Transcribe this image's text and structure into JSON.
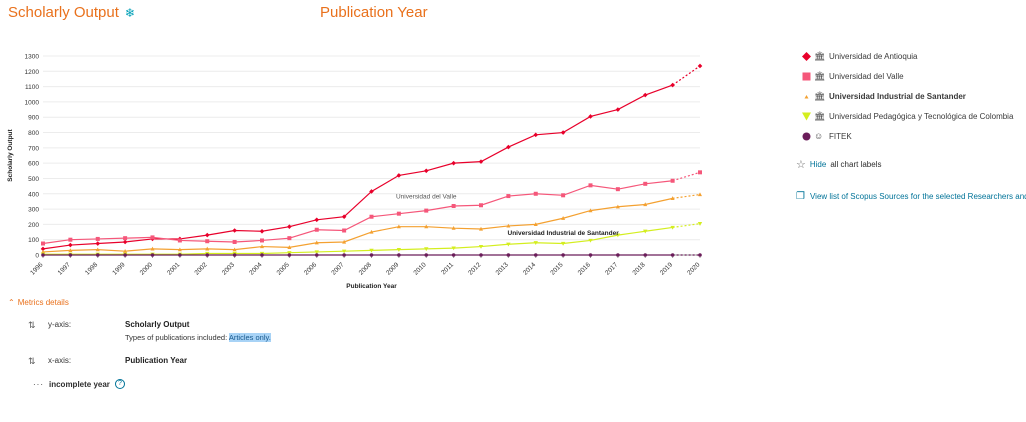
{
  "header": {
    "title": "Scholarly Output",
    "center_title": "Publication Year"
  },
  "legend": [
    {
      "label": "Universidad de Antioquia",
      "color": "#e8002b",
      "shape": "diamond",
      "bold": false
    },
    {
      "label": "Universidad del Valle",
      "color": "#f5577a",
      "shape": "square",
      "bold": false
    },
    {
      "label": "Universidad Industrial de Santander",
      "color": "#f4a131",
      "shape": "triangle-up",
      "bold": true
    },
    {
      "label": "Universidad Pedagógica y Tecnológica de Colombia",
      "color": "#d4ee1f",
      "shape": "triangle-down",
      "bold": false
    },
    {
      "label": "FITEK",
      "color": "#6b1d5a",
      "shape": "circle",
      "bold": false
    }
  ],
  "legend_icons": {
    "institution": "institution-icon",
    "group": "group-icon"
  },
  "actions": {
    "hide_link": "Hide",
    "hide_suffix": "all chart labels",
    "view_sources": "View list of Scopus Sources for the selected Researchers and"
  },
  "metrics": {
    "toggle_label": "Metrics details",
    "y_axis_label": "y-axis:",
    "y_axis_value": "Scholarly Output",
    "types_prefix": "Types of publications included:",
    "types_value": "Articles only.",
    "x_axis_label": "x-axis:",
    "x_axis_value": "Publication Year",
    "incomplete_label": "incomplete year",
    "help_glyph": "?"
  },
  "chart_data": {
    "type": "line",
    "xlabel": "Publication Year",
    "ylabel": "Scholarly Output",
    "ylim": [
      0,
      1300
    ],
    "yticks": [
      0,
      100,
      200,
      300,
      400,
      500,
      600,
      700,
      800,
      900,
      1000,
      1100,
      1200,
      1300
    ],
    "x": [
      "1996",
      "1997",
      "1998",
      "1999",
      "2000",
      "2001",
      "2002",
      "2003",
      "2004",
      "2005",
      "2006",
      "2007",
      "2008",
      "2009",
      "2010",
      "2011",
      "2012",
      "2013",
      "2014",
      "2015",
      "2016",
      "2017",
      "2018",
      "2019",
      "2020"
    ],
    "incomplete_from_index": 23,
    "grid": true,
    "series": [
      {
        "name": "Universidad de Antioquia",
        "color": "#e8002b",
        "marker": "diamond",
        "values": [
          40,
          65,
          75,
          85,
          105,
          105,
          130,
          160,
          155,
          185,
          230,
          250,
          415,
          520,
          550,
          600,
          610,
          705,
          785,
          800,
          905,
          950,
          1045,
          1110,
          1235
        ]
      },
      {
        "name": "Universidad del Valle",
        "color": "#f5577a",
        "marker": "square",
        "values": [
          75,
          100,
          105,
          110,
          115,
          95,
          90,
          85,
          95,
          110,
          165,
          160,
          250,
          270,
          290,
          320,
          325,
          385,
          400,
          390,
          455,
          430,
          465,
          485,
          540
        ]
      },
      {
        "name": "Universidad Industrial de Santander",
        "color": "#f4a131",
        "marker": "triangle-up",
        "values": [
          20,
          30,
          35,
          25,
          40,
          35,
          40,
          35,
          55,
          50,
          80,
          85,
          150,
          185,
          185,
          175,
          170,
          190,
          200,
          240,
          290,
          315,
          330,
          370,
          395
        ]
      },
      {
        "name": "Universidad Pedagógica y Tecnológica de Colombia",
        "color": "#d4ee1f",
        "marker": "triangle-down",
        "values": [
          5,
          5,
          5,
          5,
          5,
          5,
          10,
          10,
          10,
          15,
          20,
          25,
          30,
          35,
          40,
          45,
          55,
          70,
          80,
          75,
          95,
          130,
          155,
          180,
          205
        ]
      },
      {
        "name": "FITEK",
        "color": "#6b1d5a",
        "marker": "circle",
        "values": [
          0,
          0,
          0,
          0,
          0,
          0,
          0,
          0,
          0,
          0,
          0,
          0,
          0,
          0,
          0,
          0,
          0,
          0,
          0,
          0,
          0,
          0,
          0,
          0,
          0
        ]
      }
    ],
    "annotations": [
      {
        "text": "Universidad del Valle",
        "x": "2010",
        "y": 370,
        "bold": false
      },
      {
        "text": "Universidad Industrial de Santander",
        "x": "2015",
        "y": 130,
        "bold": true
      }
    ]
  }
}
